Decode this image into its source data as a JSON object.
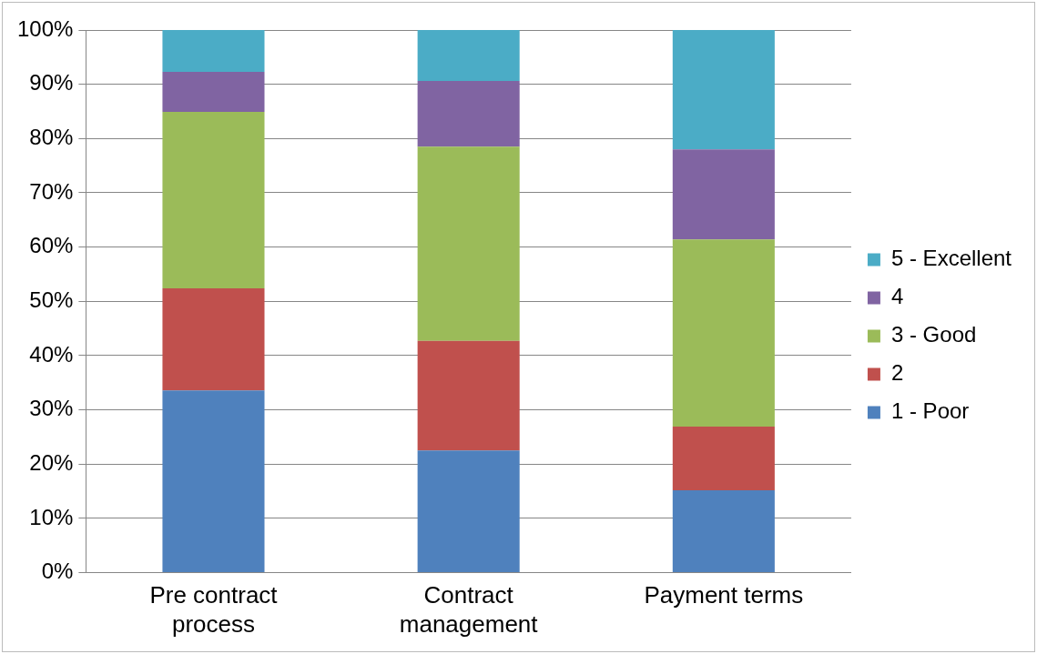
{
  "chart_data": {
    "type": "bar",
    "stacked": true,
    "categories": [
      "Pre contract process",
      "Contract management",
      "Payment terms"
    ],
    "series": [
      {
        "name": "1 - Poor",
        "color": "#4f81bd",
        "values": [
          33.6,
          22.5,
          15.2
        ]
      },
      {
        "name": "2",
        "color": "#c0504d",
        "values": [
          18.8,
          20.2,
          11.7
        ]
      },
      {
        "name": "3 - Good",
        "color": "#9bbb59",
        "values": [
          32.5,
          35.8,
          34.5
        ]
      },
      {
        "name": "4",
        "color": "#8064a2",
        "values": [
          7.4,
          12.1,
          16.6
        ]
      },
      {
        "name": "5 - Excellent",
        "color": "#4bacc6",
        "values": [
          7.7,
          9.4,
          22.0
        ]
      }
    ],
    "ylim": [
      0,
      100
    ],
    "yticks": [
      {
        "value": 0,
        "label": "0%"
      },
      {
        "value": 10,
        "label": "10%"
      },
      {
        "value": 20,
        "label": "20%"
      },
      {
        "value": 30,
        "label": "30%"
      },
      {
        "value": 40,
        "label": "40%"
      },
      {
        "value": 50,
        "label": "50%"
      },
      {
        "value": 60,
        "label": "60%"
      },
      {
        "value": 70,
        "label": "70%"
      },
      {
        "value": 80,
        "label": "80%"
      },
      {
        "value": 90,
        "label": "90%"
      },
      {
        "value": 100,
        "label": "100%"
      }
    ],
    "grid": "y",
    "legend": "right"
  }
}
